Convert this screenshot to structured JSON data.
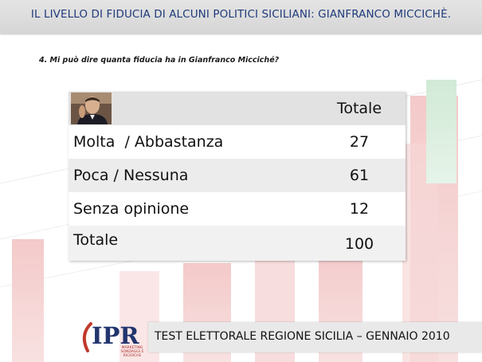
{
  "header": {
    "title": "IL LIVELLO DI FIDUCIA DI ALCUNI POLITICI SICILIANI: GIANFRANCO MICCICHÈ."
  },
  "question": "4. Mi può dire quanta fiducia ha in  Gianfranco Micciché?",
  "table": {
    "header_label": "Totale",
    "rows": [
      {
        "label": "Molta  / Abbastanza",
        "value": "27"
      },
      {
        "label": "Poca / Nessuna",
        "value": "61"
      },
      {
        "label": "Senza opinione",
        "value": "12"
      },
      {
        "label": "Totale",
        "value": "100"
      }
    ]
  },
  "footer": {
    "text": "TEST ELETTORALE REGIONE SICILIA – GENNAIO 2010",
    "logo_text": "IPR",
    "logo_subtext": "MARKETING SONDAGGI E RICERCHE"
  },
  "colors": {
    "title_color": "#1f3a7a",
    "accent_red": "#e24a4a",
    "accent_green": "#3fae5a"
  }
}
